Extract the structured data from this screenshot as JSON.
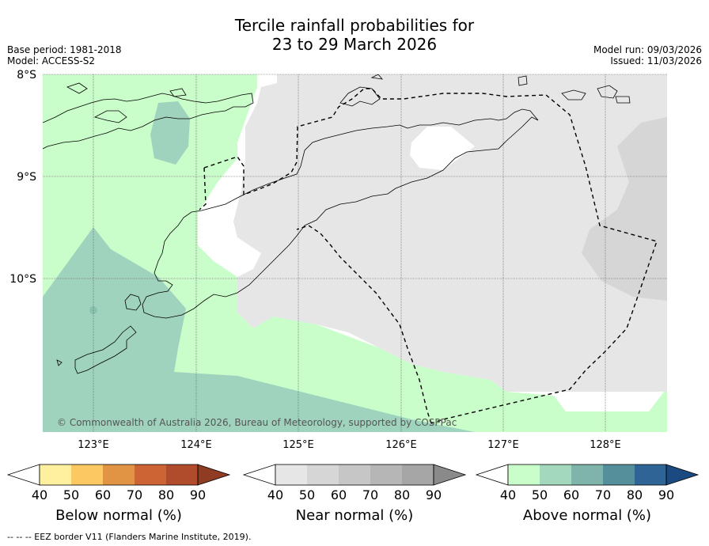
{
  "header": {
    "title_line1": "Tercile rainfall probabilities for",
    "title_line2": "23 to 29 March 2026",
    "base_period": "Base period: 1981-2018",
    "model": "Model: ACCESS-S2",
    "model_run": "Model run: 09/03/2026",
    "issued": "Issued: 11/03/2026"
  },
  "map": {
    "lat_labels": [
      "8°S",
      "9°S",
      "10°S"
    ],
    "lon_labels": [
      "123°E",
      "124°E",
      "125°E",
      "126°E",
      "127°E",
      "128°E"
    ],
    "copyright": "© Commonwealth of Australia 2026, Bureau of Meteorology, supported by COSPPac"
  },
  "colorbars": [
    {
      "name": "below",
      "label": "Below normal (%)",
      "ticks": [
        "40",
        "50",
        "60",
        "70",
        "80",
        "90"
      ],
      "colors": [
        "#ffffff",
        "#fff0a0",
        "#fcc862",
        "#e09444",
        "#cc6434",
        "#b04c2c",
        "#903c22"
      ]
    },
    {
      "name": "near",
      "label": "Near normal (%)",
      "ticks": [
        "40",
        "50",
        "60",
        "70",
        "80",
        "90"
      ],
      "colors": [
        "#ffffff",
        "#e6e6e6",
        "#d6d6d6",
        "#c6c6c6",
        "#b6b6b6",
        "#a6a6a6",
        "#8a8a8a"
      ]
    },
    {
      "name": "above",
      "label": "Above normal (%)",
      "ticks": [
        "40",
        "50",
        "60",
        "70",
        "80",
        "90"
      ],
      "colors": [
        "#ffffff",
        "#c9fdc9",
        "#a3d8bc",
        "#7fb4aa",
        "#558f9c",
        "#2e6496",
        "#1a4a80"
      ]
    }
  ],
  "footnote": "--  --  -- EEZ border V11 (Flanders Marine Institute, 2019)."
}
